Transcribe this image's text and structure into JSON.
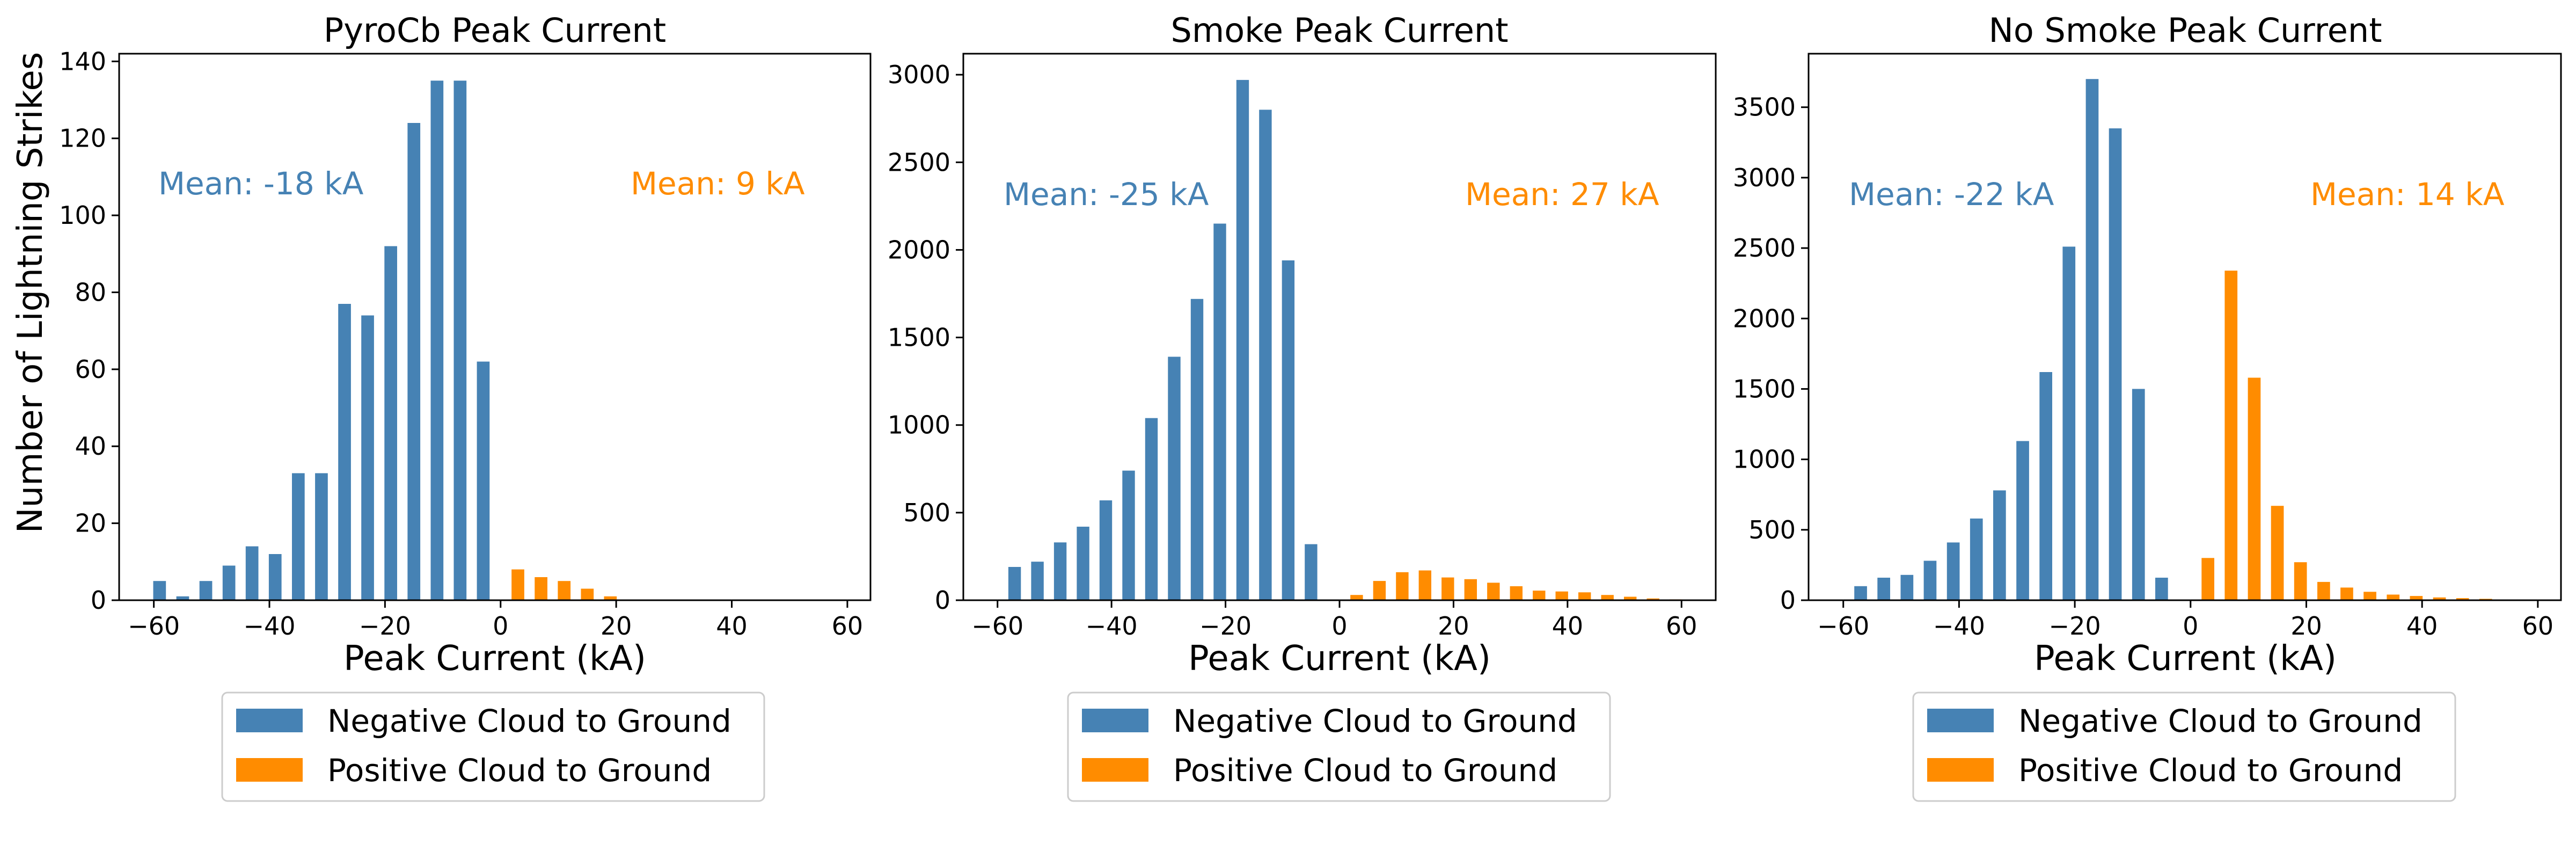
{
  "colors": {
    "negative": "#4682b4",
    "positive": "#ff8c00"
  },
  "shared_ylabel": "Number of Lightning Strikes",
  "legend": {
    "negative_label": "Negative Cloud to Ground",
    "positive_label": "Positive Cloud to Ground"
  },
  "chart_data": [
    {
      "type": "bar",
      "title": "PyroCb Peak Current",
      "xlabel": "Peak Current (kA)",
      "ylabel": "Number of Lightning Strikes",
      "xlim": [
        -66,
        64
      ],
      "ylim": [
        0,
        142
      ],
      "xticks": [
        -60,
        -40,
        -20,
        0,
        20,
        40,
        60
      ],
      "yticks": [
        0,
        20,
        40,
        60,
        80,
        100,
        120,
        140
      ],
      "mean_negative": "Mean: -18 kA",
      "mean_positive": "Mean: 9 kA",
      "series": [
        {
          "name": "Negative Cloud to Ground",
          "x": [
            -59,
            -55,
            -51,
            -47,
            -43,
            -39,
            -35,
            -31,
            -27,
            -23,
            -19,
            -15,
            -11,
            -7,
            -3
          ],
          "values": [
            5,
            1,
            5,
            9,
            14,
            12,
            33,
            33,
            77,
            74,
            92,
            124,
            135,
            135,
            62
          ]
        },
        {
          "name": "Positive Cloud to Ground",
          "x": [
            3,
            7,
            11,
            15,
            19
          ],
          "values": [
            8,
            6,
            5,
            3,
            1
          ]
        }
      ]
    },
    {
      "type": "bar",
      "title": "Smoke Peak Current",
      "xlabel": "Peak Current (kA)",
      "xlim": [
        -66,
        66
      ],
      "ylim": [
        0,
        3120
      ],
      "xticks": [
        -60,
        -40,
        -20,
        0,
        20,
        40,
        60
      ],
      "yticks": [
        0,
        500,
        1000,
        1500,
        2000,
        2500,
        3000
      ],
      "mean_negative": "Mean: -25 kA",
      "mean_positive": "Mean: 27 kA",
      "series": [
        {
          "name": "Negative Cloud to Ground",
          "x": [
            -57,
            -53,
            -49,
            -45,
            -41,
            -37,
            -33,
            -29,
            -25,
            -21,
            -17,
            -13,
            -9,
            -5
          ],
          "values": [
            190,
            220,
            330,
            420,
            570,
            740,
            1040,
            1390,
            1720,
            2150,
            2970,
            2800,
            1940,
            320
          ]
        },
        {
          "name": "Positive Cloud to Ground",
          "x": [
            3,
            7,
            11,
            15,
            19,
            23,
            27,
            31,
            35,
            39,
            43,
            47,
            51,
            55,
            59
          ],
          "values": [
            30,
            110,
            160,
            170,
            130,
            120,
            100,
            80,
            55,
            50,
            45,
            30,
            20,
            10,
            5
          ]
        }
      ]
    },
    {
      "type": "bar",
      "title": "No Smoke Peak Current",
      "xlabel": "Peak Current (kA)",
      "xlim": [
        -66,
        64
      ],
      "ylim": [
        0,
        3880
      ],
      "xticks": [
        -60,
        -40,
        -20,
        0,
        20,
        40,
        60
      ],
      "yticks": [
        0,
        500,
        1000,
        1500,
        2000,
        2500,
        3000,
        3500
      ],
      "mean_negative": "Mean: -22 kA",
      "mean_positive": "Mean: 14 kA",
      "series": [
        {
          "name": "Negative Cloud to Ground",
          "x": [
            -57,
            -53,
            -49,
            -45,
            -41,
            -37,
            -33,
            -29,
            -25,
            -21,
            -17,
            -13,
            -9,
            -5
          ],
          "values": [
            100,
            160,
            180,
            280,
            410,
            580,
            780,
            1130,
            1620,
            2510,
            3700,
            3350,
            1500,
            160
          ]
        },
        {
          "name": "Positive Cloud to Ground",
          "x": [
            3,
            7,
            11,
            15,
            19,
            23,
            27,
            31,
            35,
            39,
            43,
            47,
            51,
            55,
            59
          ],
          "values": [
            300,
            2340,
            1580,
            670,
            270,
            130,
            90,
            60,
            40,
            30,
            20,
            15,
            10,
            5,
            3
          ]
        }
      ]
    }
  ]
}
